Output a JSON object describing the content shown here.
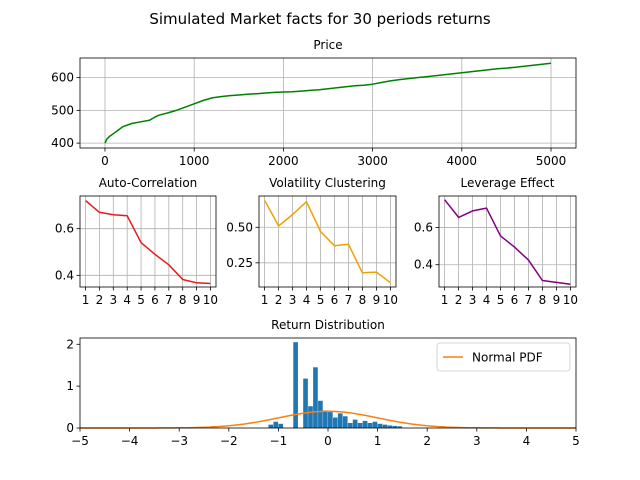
{
  "title": "Simulated Market facts for 30 periods returns",
  "chart_data": [
    {
      "id": "price",
      "type": "line",
      "title": "Price",
      "color": "#008000",
      "grid": true,
      "xlim": [
        -280,
        5280
      ],
      "ylim": [
        385,
        660
      ],
      "xticks": [
        0,
        1000,
        2000,
        3000,
        4000,
        5000
      ],
      "yticks": [
        400,
        500,
        600
      ],
      "series": [
        {
          "x": [
            0,
            20,
            50,
            100,
            150,
            200,
            300,
            400,
            500,
            550,
            600,
            700,
            800,
            900,
            1000,
            1100,
            1200,
            1300,
            1400,
            1500,
            1600,
            1700,
            1800,
            1900,
            2000,
            2100,
            2200,
            2300,
            2400,
            2500,
            2600,
            2700,
            2800,
            2900,
            3000,
            3100,
            3200,
            3300,
            3400,
            3500,
            3600,
            3700,
            3800,
            3900,
            4000,
            4100,
            4200,
            4300,
            4400,
            4500,
            4600,
            4700,
            4800,
            4900,
            5000
          ],
          "y": [
            400,
            412,
            420,
            430,
            440,
            450,
            460,
            465,
            470,
            478,
            485,
            492,
            500,
            510,
            520,
            530,
            538,
            542,
            545,
            547,
            549,
            551,
            553,
            555,
            556,
            557,
            559,
            561,
            563,
            566,
            569,
            572,
            575,
            577,
            580,
            585,
            590,
            594,
            597,
            600,
            603,
            606,
            609,
            612,
            615,
            618,
            621,
            624,
            627,
            629,
            632,
            635,
            638,
            641,
            644
          ]
        }
      ]
    },
    {
      "id": "autocorr",
      "type": "line",
      "title": "Auto-Correlation",
      "color": "#e41a1c",
      "grid": true,
      "xlim": [
        0.6,
        10.4
      ],
      "ylim": [
        0.35,
        0.74
      ],
      "xticks": [
        1,
        2,
        3,
        4,
        5,
        6,
        7,
        8,
        9,
        10
      ],
      "yticks": [
        0.4,
        0.6
      ],
      "ytick_labels": [
        "0.4",
        "0.6"
      ],
      "series": [
        {
          "x": [
            1,
            2,
            3,
            4,
            5,
            6,
            7,
            8,
            9,
            10
          ],
          "y": [
            0.72,
            0.67,
            0.66,
            0.655,
            0.54,
            0.49,
            0.445,
            0.382,
            0.368,
            0.365
          ]
        }
      ]
    },
    {
      "id": "volclust",
      "type": "line",
      "title": "Volatility Clustering",
      "color": "#f0a000",
      "grid": true,
      "xlim": [
        0.6,
        10.4
      ],
      "ylim": [
        0.08,
        0.72
      ],
      "xticks": [
        1,
        2,
        3,
        4,
        5,
        6,
        7,
        8,
        9,
        10
      ],
      "yticks": [
        0.25,
        0.5
      ],
      "ytick_labels": [
        "0.25",
        "0.50"
      ],
      "series": [
        {
          "x": [
            1,
            2,
            3,
            4,
            5,
            6,
            7,
            8,
            9,
            10
          ],
          "y": [
            0.69,
            0.51,
            0.59,
            0.68,
            0.47,
            0.37,
            0.38,
            0.18,
            0.185,
            0.11
          ]
        }
      ]
    },
    {
      "id": "leverage",
      "type": "line",
      "title": "Leverage Effect",
      "color": "#800080",
      "grid": true,
      "xlim": [
        0.6,
        10.4
      ],
      "ylim": [
        0.28,
        0.77
      ],
      "xticks": [
        1,
        2,
        3,
        4,
        5,
        6,
        7,
        8,
        9,
        10
      ],
      "yticks": [
        0.4,
        0.6
      ],
      "ytick_labels": [
        "0.4",
        "0.6"
      ],
      "series": [
        {
          "x": [
            1,
            2,
            3,
            4,
            5,
            6,
            7,
            8,
            9,
            10
          ],
          "y": [
            0.75,
            0.655,
            0.69,
            0.705,
            0.555,
            0.495,
            0.425,
            0.315,
            0.305,
            0.295
          ]
        }
      ]
    },
    {
      "id": "returns",
      "type": "bar",
      "title": "Return Distribution",
      "grid": false,
      "xlim": [
        -5,
        5
      ],
      "ylim": [
        0,
        2.15
      ],
      "xticks": [
        -5,
        -4,
        -3,
        -2,
        -1,
        0,
        1,
        2,
        3,
        4,
        5
      ],
      "xtick_labels": [
        "−5",
        "−4",
        "−3",
        "−2",
        "−1",
        "0",
        "1",
        "2",
        "3",
        "4",
        "5"
      ],
      "yticks": [
        0,
        1,
        2
      ],
      "bar_color": "#1f77b4",
      "bin_width": 0.1,
      "bins": [
        {
          "x": -1.15,
          "y": 0.08
        },
        {
          "x": -1.05,
          "y": 0.15
        },
        {
          "x": -0.95,
          "y": 0.1
        },
        {
          "x": -0.65,
          "y": 2.05
        },
        {
          "x": -0.45,
          "y": 1.18
        },
        {
          "x": -0.35,
          "y": 0.52
        },
        {
          "x": -0.25,
          "y": 1.45
        },
        {
          "x": -0.15,
          "y": 0.65
        },
        {
          "x": -0.05,
          "y": 0.42
        },
        {
          "x": 0.05,
          "y": 0.38
        },
        {
          "x": 0.15,
          "y": 0.25
        },
        {
          "x": 0.25,
          "y": 0.35
        },
        {
          "x": 0.35,
          "y": 0.28
        },
        {
          "x": 0.45,
          "y": 0.12
        },
        {
          "x": 0.55,
          "y": 0.2
        },
        {
          "x": 0.65,
          "y": 0.12
        },
        {
          "x": 0.75,
          "y": 0.17
        },
        {
          "x": 0.85,
          "y": 0.12
        },
        {
          "x": 0.95,
          "y": 0.15
        },
        {
          "x": 1.05,
          "y": 0.1
        },
        {
          "x": 1.15,
          "y": 0.08
        },
        {
          "x": 1.25,
          "y": 0.06
        },
        {
          "x": 1.35,
          "y": 0.05
        },
        {
          "x": 1.45,
          "y": 0.04
        }
      ],
      "pdf": {
        "name": "Normal PDF",
        "mean": 0,
        "std": 1,
        "color": "#ff7f0e"
      },
      "legend": "top-right"
    }
  ]
}
